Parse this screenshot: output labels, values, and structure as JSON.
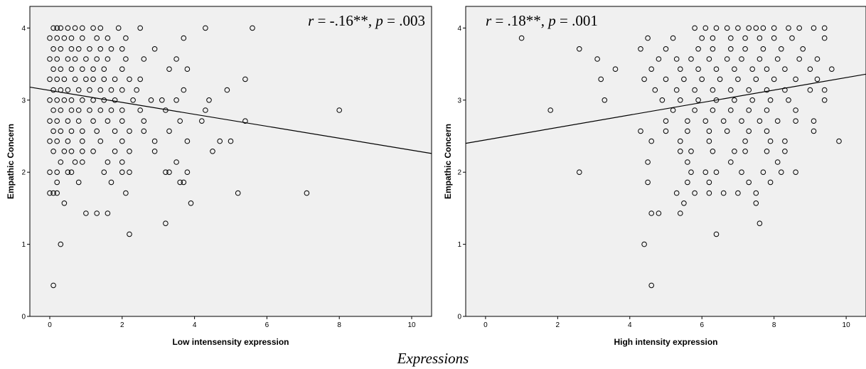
{
  "caption": "Expressions",
  "chart_data": [
    {
      "type": "scatter",
      "xlabel": "Low intensensity expression",
      "ylabel": "Empathic Concern",
      "annotation": {
        "r_label": "r",
        "r_value": " = -.16**, ",
        "p_label": "p",
        "p_value": " = .003"
      },
      "xlim": [
        -0.55,
        10.55
      ],
      "ylim": [
        0,
        4.3
      ],
      "xticks": [
        "0",
        "2",
        "4",
        "6",
        "8",
        "10"
      ],
      "yticks": [
        "0",
        "1",
        "2",
        "3",
        "4"
      ],
      "fit_line": {
        "x": [
          -0.55,
          10.55
        ],
        "y": [
          3.18,
          2.26
        ]
      },
      "points": [
        [
          0.1,
          4
        ],
        [
          0.2,
          4
        ],
        [
          0.3,
          4
        ],
        [
          0.5,
          4
        ],
        [
          0.7,
          4
        ],
        [
          0.9,
          4
        ],
        [
          1.2,
          4
        ],
        [
          1.4,
          4
        ],
        [
          1.9,
          4
        ],
        [
          2.5,
          4
        ],
        [
          4.3,
          4
        ],
        [
          5.6,
          4
        ],
        [
          0,
          3.86
        ],
        [
          0.2,
          3.86
        ],
        [
          0.4,
          3.86
        ],
        [
          0.6,
          3.86
        ],
        [
          0.9,
          3.86
        ],
        [
          1.3,
          3.86
        ],
        [
          1.6,
          3.86
        ],
        [
          2.1,
          3.86
        ],
        [
          3.7,
          3.86
        ],
        [
          0.1,
          3.71
        ],
        [
          0.3,
          3.71
        ],
        [
          0.6,
          3.71
        ],
        [
          0.8,
          3.71
        ],
        [
          1.1,
          3.71
        ],
        [
          1.4,
          3.71
        ],
        [
          1.7,
          3.71
        ],
        [
          2,
          3.71
        ],
        [
          2.9,
          3.71
        ],
        [
          0,
          3.57
        ],
        [
          0.2,
          3.57
        ],
        [
          0.5,
          3.57
        ],
        [
          0.7,
          3.57
        ],
        [
          1,
          3.57
        ],
        [
          1.3,
          3.57
        ],
        [
          1.6,
          3.57
        ],
        [
          2.1,
          3.57
        ],
        [
          2.6,
          3.57
        ],
        [
          3.5,
          3.57
        ],
        [
          0.1,
          3.43
        ],
        [
          0.3,
          3.43
        ],
        [
          0.6,
          3.43
        ],
        [
          0.9,
          3.43
        ],
        [
          1.2,
          3.43
        ],
        [
          1.5,
          3.43
        ],
        [
          2,
          3.43
        ],
        [
          3.3,
          3.43
        ],
        [
          3.8,
          3.43
        ],
        [
          0,
          3.29
        ],
        [
          0.2,
          3.29
        ],
        [
          0.4,
          3.29
        ],
        [
          0.7,
          3.29
        ],
        [
          1,
          3.29
        ],
        [
          1.2,
          3.29
        ],
        [
          1.5,
          3.29
        ],
        [
          1.8,
          3.29
        ],
        [
          2.2,
          3.29
        ],
        [
          2.5,
          3.29
        ],
        [
          5.4,
          3.29
        ],
        [
          0.1,
          3.14
        ],
        [
          0.3,
          3.14
        ],
        [
          0.5,
          3.14
        ],
        [
          0.8,
          3.14
        ],
        [
          1.1,
          3.14
        ],
        [
          1.4,
          3.14
        ],
        [
          1.7,
          3.14
        ],
        [
          2,
          3.14
        ],
        [
          2.4,
          3.14
        ],
        [
          3.7,
          3.14
        ],
        [
          4.9,
          3.14
        ],
        [
          0,
          3
        ],
        [
          0.2,
          3
        ],
        [
          0.4,
          3
        ],
        [
          0.6,
          3
        ],
        [
          0.9,
          3
        ],
        [
          1.2,
          3
        ],
        [
          1.5,
          3
        ],
        [
          1.8,
          3
        ],
        [
          2.3,
          3
        ],
        [
          2.8,
          3
        ],
        [
          3.1,
          3
        ],
        [
          3.5,
          3
        ],
        [
          4.4,
          3
        ],
        [
          0.1,
          2.86
        ],
        [
          0.3,
          2.86
        ],
        [
          0.6,
          2.86
        ],
        [
          0.8,
          2.86
        ],
        [
          1.1,
          2.86
        ],
        [
          1.4,
          2.86
        ],
        [
          1.7,
          2.86
        ],
        [
          2,
          2.86
        ],
        [
          2.5,
          2.86
        ],
        [
          3.2,
          2.86
        ],
        [
          4.3,
          2.86
        ],
        [
          8,
          2.86
        ],
        [
          0,
          2.71
        ],
        [
          0.2,
          2.71
        ],
        [
          0.5,
          2.71
        ],
        [
          0.8,
          2.71
        ],
        [
          1.2,
          2.71
        ],
        [
          1.6,
          2.71
        ],
        [
          2,
          2.71
        ],
        [
          2.6,
          2.71
        ],
        [
          3.6,
          2.71
        ],
        [
          4.2,
          2.71
        ],
        [
          5.4,
          2.71
        ],
        [
          0.1,
          2.57
        ],
        [
          0.3,
          2.57
        ],
        [
          0.6,
          2.57
        ],
        [
          0.9,
          2.57
        ],
        [
          1.3,
          2.57
        ],
        [
          1.8,
          2.57
        ],
        [
          2.2,
          2.57
        ],
        [
          2.6,
          2.57
        ],
        [
          3.3,
          2.57
        ],
        [
          0,
          2.43
        ],
        [
          0.2,
          2.43
        ],
        [
          0.5,
          2.43
        ],
        [
          0.9,
          2.43
        ],
        [
          1.4,
          2.43
        ],
        [
          2,
          2.43
        ],
        [
          2.9,
          2.43
        ],
        [
          3.8,
          2.43
        ],
        [
          4.7,
          2.43
        ],
        [
          5,
          2.43
        ],
        [
          0.1,
          2.29
        ],
        [
          0.4,
          2.29
        ],
        [
          0.6,
          2.29
        ],
        [
          0.9,
          2.29
        ],
        [
          1.2,
          2.29
        ],
        [
          1.8,
          2.29
        ],
        [
          2.2,
          2.29
        ],
        [
          2.9,
          2.29
        ],
        [
          4.5,
          2.29
        ],
        [
          0.3,
          2.14
        ],
        [
          0.7,
          2.14
        ],
        [
          0.9,
          2.14
        ],
        [
          1.6,
          2.14
        ],
        [
          2,
          2.14
        ],
        [
          3.5,
          2.14
        ],
        [
          0,
          2
        ],
        [
          0.2,
          2
        ],
        [
          0.5,
          2
        ],
        [
          0.6,
          2
        ],
        [
          1.5,
          2
        ],
        [
          2,
          2
        ],
        [
          2.2,
          2
        ],
        [
          3.2,
          2
        ],
        [
          3.3,
          2
        ],
        [
          3.8,
          2
        ],
        [
          0.2,
          1.86
        ],
        [
          0.8,
          1.86
        ],
        [
          1.7,
          1.86
        ],
        [
          3.6,
          1.86
        ],
        [
          3.7,
          1.86
        ],
        [
          0,
          1.71
        ],
        [
          0.1,
          1.71
        ],
        [
          0.2,
          1.71
        ],
        [
          2.1,
          1.71
        ],
        [
          5.2,
          1.71
        ],
        [
          7.1,
          1.71
        ],
        [
          0.4,
          1.57
        ],
        [
          3.9,
          1.57
        ],
        [
          1,
          1.43
        ],
        [
          1.3,
          1.43
        ],
        [
          1.6,
          1.43
        ],
        [
          3.2,
          1.29
        ],
        [
          2.2,
          1.14
        ],
        [
          0.3,
          1
        ],
        [
          0.1,
          0.43
        ]
      ]
    },
    {
      "type": "scatter",
      "xlabel": "High intensity expression",
      "ylabel": "Empathic Concern",
      "annotation": {
        "r_label": "r",
        "r_value": " = .18**, ",
        "p_label": "p",
        "p_value": " = .001"
      },
      "xlim": [
        -0.55,
        10.55
      ],
      "ylim": [
        0,
        4.3
      ],
      "xticks": [
        "0",
        "2",
        "4",
        "6",
        "8",
        "10"
      ],
      "yticks": [
        "0",
        "1",
        "2",
        "3",
        "4"
      ],
      "fit_line": {
        "x": [
          -0.55,
          10.55
        ],
        "y": [
          2.4,
          3.36
        ]
      },
      "points": [
        [
          5.8,
          4
        ],
        [
          6.1,
          4
        ],
        [
          6.4,
          4
        ],
        [
          6.7,
          4
        ],
        [
          7,
          4
        ],
        [
          7.3,
          4
        ],
        [
          7.5,
          4
        ],
        [
          7.7,
          4
        ],
        [
          8,
          4
        ],
        [
          8.4,
          4
        ],
        [
          8.7,
          4
        ],
        [
          9.1,
          4
        ],
        [
          9.4,
          4
        ],
        [
          1,
          3.86
        ],
        [
          4.5,
          3.86
        ],
        [
          5.2,
          3.86
        ],
        [
          6,
          3.86
        ],
        [
          6.3,
          3.86
        ],
        [
          6.8,
          3.86
        ],
        [
          7.2,
          3.86
        ],
        [
          7.6,
          3.86
        ],
        [
          8,
          3.86
        ],
        [
          8.5,
          3.86
        ],
        [
          9.4,
          3.86
        ],
        [
          2.6,
          3.71
        ],
        [
          4.3,
          3.71
        ],
        [
          5,
          3.71
        ],
        [
          5.9,
          3.71
        ],
        [
          6.3,
          3.71
        ],
        [
          6.8,
          3.71
        ],
        [
          7.2,
          3.71
        ],
        [
          7.7,
          3.71
        ],
        [
          8.2,
          3.71
        ],
        [
          8.8,
          3.71
        ],
        [
          3.1,
          3.57
        ],
        [
          4.8,
          3.57
        ],
        [
          5.3,
          3.57
        ],
        [
          5.7,
          3.57
        ],
        [
          6.2,
          3.57
        ],
        [
          6.7,
          3.57
        ],
        [
          7.1,
          3.57
        ],
        [
          7.6,
          3.57
        ],
        [
          8.1,
          3.57
        ],
        [
          8.7,
          3.57
        ],
        [
          9.2,
          3.57
        ],
        [
          3.6,
          3.43
        ],
        [
          4.6,
          3.43
        ],
        [
          5.4,
          3.43
        ],
        [
          5.9,
          3.43
        ],
        [
          6.4,
          3.43
        ],
        [
          6.9,
          3.43
        ],
        [
          7.4,
          3.43
        ],
        [
          7.8,
          3.43
        ],
        [
          8.3,
          3.43
        ],
        [
          9,
          3.43
        ],
        [
          9.6,
          3.43
        ],
        [
          3.2,
          3.29
        ],
        [
          4.4,
          3.29
        ],
        [
          5,
          3.29
        ],
        [
          5.5,
          3.29
        ],
        [
          6,
          3.29
        ],
        [
          6.5,
          3.29
        ],
        [
          7,
          3.29
        ],
        [
          7.5,
          3.29
        ],
        [
          8,
          3.29
        ],
        [
          8.6,
          3.29
        ],
        [
          9.2,
          3.29
        ],
        [
          4.7,
          3.14
        ],
        [
          5.3,
          3.14
        ],
        [
          5.8,
          3.14
        ],
        [
          6.3,
          3.14
        ],
        [
          6.8,
          3.14
        ],
        [
          7.3,
          3.14
        ],
        [
          7.8,
          3.14
        ],
        [
          8.3,
          3.14
        ],
        [
          9,
          3.14
        ],
        [
          9.4,
          3.14
        ],
        [
          3.3,
          3
        ],
        [
          4.9,
          3
        ],
        [
          5.4,
          3
        ],
        [
          5.9,
          3
        ],
        [
          6.4,
          3
        ],
        [
          6.9,
          3
        ],
        [
          7.4,
          3
        ],
        [
          7.9,
          3
        ],
        [
          8.4,
          3
        ],
        [
          9.4,
          3
        ],
        [
          1.8,
          2.86
        ],
        [
          5.2,
          2.86
        ],
        [
          5.8,
          2.86
        ],
        [
          6.3,
          2.86
        ],
        [
          6.8,
          2.86
        ],
        [
          7.3,
          2.86
        ],
        [
          7.8,
          2.86
        ],
        [
          8.6,
          2.86
        ],
        [
          5,
          2.71
        ],
        [
          5.6,
          2.71
        ],
        [
          6.1,
          2.71
        ],
        [
          6.6,
          2.71
        ],
        [
          7.1,
          2.71
        ],
        [
          7.6,
          2.71
        ],
        [
          8.1,
          2.71
        ],
        [
          8.6,
          2.71
        ],
        [
          9.1,
          2.71
        ],
        [
          4.3,
          2.57
        ],
        [
          5,
          2.57
        ],
        [
          5.6,
          2.57
        ],
        [
          6.2,
          2.57
        ],
        [
          6.7,
          2.57
        ],
        [
          7.3,
          2.57
        ],
        [
          7.8,
          2.57
        ],
        [
          9.1,
          2.57
        ],
        [
          4.6,
          2.43
        ],
        [
          5.4,
          2.43
        ],
        [
          6.2,
          2.43
        ],
        [
          7.2,
          2.43
        ],
        [
          7.9,
          2.43
        ],
        [
          8.3,
          2.43
        ],
        [
          9.8,
          2.43
        ],
        [
          5.4,
          2.29
        ],
        [
          5.7,
          2.29
        ],
        [
          6.3,
          2.29
        ],
        [
          6.9,
          2.29
        ],
        [
          7.2,
          2.29
        ],
        [
          7.8,
          2.29
        ],
        [
          8.3,
          2.29
        ],
        [
          4.5,
          2.14
        ],
        [
          5.6,
          2.14
        ],
        [
          6.8,
          2.14
        ],
        [
          8.1,
          2.14
        ],
        [
          2.6,
          2
        ],
        [
          5.7,
          2
        ],
        [
          6.1,
          2
        ],
        [
          6.4,
          2
        ],
        [
          7.1,
          2
        ],
        [
          7.7,
          2
        ],
        [
          8.2,
          2
        ],
        [
          8.6,
          2
        ],
        [
          4.5,
          1.86
        ],
        [
          5.6,
          1.86
        ],
        [
          6.2,
          1.86
        ],
        [
          7.3,
          1.86
        ],
        [
          7.9,
          1.86
        ],
        [
          5.3,
          1.71
        ],
        [
          5.8,
          1.71
        ],
        [
          6.2,
          1.71
        ],
        [
          6.6,
          1.71
        ],
        [
          7,
          1.71
        ],
        [
          7.5,
          1.71
        ],
        [
          5.5,
          1.57
        ],
        [
          7.5,
          1.57
        ],
        [
          4.6,
          1.43
        ],
        [
          4.8,
          1.43
        ],
        [
          5.4,
          1.43
        ],
        [
          7.6,
          1.29
        ],
        [
          6.4,
          1.14
        ],
        [
          4.4,
          1
        ],
        [
          4.6,
          0.43
        ]
      ]
    }
  ]
}
